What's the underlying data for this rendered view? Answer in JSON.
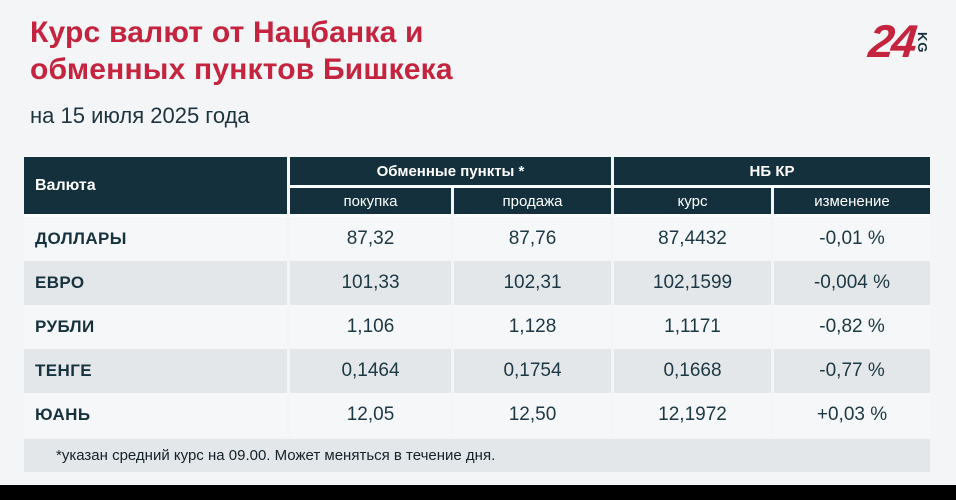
{
  "page": {
    "title_line1": "Курс валют от Нацбанка и",
    "title_line2": "обменных пунктов Бишкека",
    "subtitle": "на 15 июля 2025 года",
    "footnote": "*указан средний курс на 09.00. Может меняться в течение дня."
  },
  "logo": {
    "number": "24",
    "suffix": "KG"
  },
  "colors": {
    "accent_red": "#c5243f",
    "header_bg": "#14303c",
    "text_dark": "#1d3845",
    "row_alt": "#e4e7e9",
    "page_bg": "#f3f5f7",
    "bottom_bar": "#000000"
  },
  "table": {
    "col_currency": "Валюта",
    "group_exchange": "Обменные пункты *",
    "group_nbkr": "НБ КР",
    "sub_buy": "покупка",
    "sub_sell": "продажа",
    "sub_rate": "курс",
    "sub_change": "изменение",
    "rows": [
      {
        "currency": "ДОЛЛАРЫ",
        "buy": "87,32",
        "sell": "87,76",
        "rate": "87,4432",
        "change": "-0,01 %"
      },
      {
        "currency": "ЕВРО",
        "buy": "101,33",
        "sell": "102,31",
        "rate": "102,1599",
        "change": "-0,004 %"
      },
      {
        "currency": "РУБЛИ",
        "buy": "1,106",
        "sell": "1,128",
        "rate": "1,1171",
        "change": "-0,82 %"
      },
      {
        "currency": "ТЕНГЕ",
        "buy": "0,1464",
        "sell": "0,1754",
        "rate": "0,1668",
        "change": "-0,77 %"
      },
      {
        "currency": "ЮАНЬ",
        "buy": "12,05",
        "sell": "12,50",
        "rate": "12,1972",
        "change": "+0,03 %"
      }
    ]
  },
  "chart_data": {
    "type": "table",
    "title": "Курс валют от Нацбанка и обменных пунктов Бишкека",
    "subtitle": "на 15 июля 2025 года",
    "column_groups": [
      "Валюта",
      "Обменные пункты *",
      "НБ КР"
    ],
    "columns": [
      "Валюта",
      "покупка",
      "продажа",
      "курс",
      "изменение"
    ],
    "rows": [
      [
        "ДОЛЛАРЫ",
        "87,32",
        "87,76",
        "87,4432",
        "-0,01 %"
      ],
      [
        "ЕВРО",
        "101,33",
        "102,31",
        "102,1599",
        "-0,004 %"
      ],
      [
        "РУБЛИ",
        "1,106",
        "1,128",
        "1,1171",
        "-0,82 %"
      ],
      [
        "ТЕНГЕ",
        "0,1464",
        "0,1754",
        "0,1668",
        "-0,77 %"
      ],
      [
        "ЮАНЬ",
        "12,05",
        "12,50",
        "12,1972",
        "+0,03 %"
      ]
    ],
    "footnote": "*указан средний курс на 09.00. Может меняться в течение дня."
  }
}
